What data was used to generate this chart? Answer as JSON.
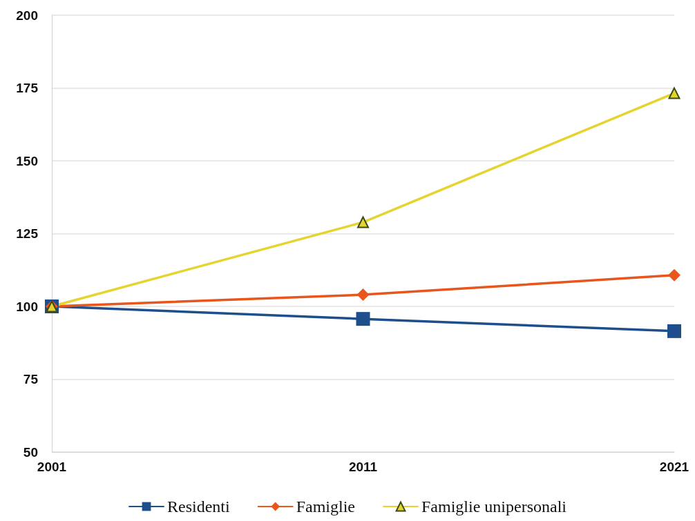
{
  "chart_data": {
    "type": "line",
    "categories": [
      "2001",
      "2011",
      "2021"
    ],
    "series": [
      {
        "name": "Residenti",
        "color": "#1f4e8c",
        "marker": "square",
        "values": [
          100,
          95.7,
          91.5
        ]
      },
      {
        "name": "Famiglie",
        "color": "#e8561c",
        "marker": "diamond",
        "values": [
          100,
          104,
          110.7
        ]
      },
      {
        "name": "Famiglie unipersonali",
        "color": "#e6d42e",
        "marker": "triangle",
        "values": [
          100,
          128.9,
          173.2
        ]
      }
    ],
    "ylim": [
      50,
      200
    ],
    "yticks": [
      50,
      75,
      100,
      125,
      150,
      175,
      200
    ],
    "grid": "y",
    "legend": "bottom",
    "line_style": "solid"
  }
}
